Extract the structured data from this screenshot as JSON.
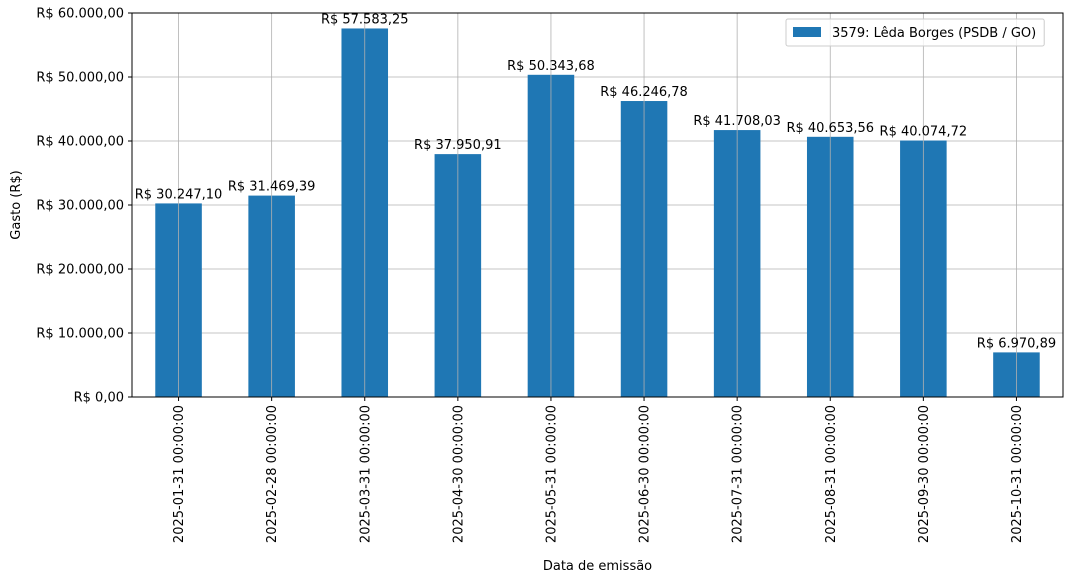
{
  "chart_data": {
    "type": "bar",
    "categories": [
      "2025-01-31 00:00:00",
      "2025-02-28 00:00:00",
      "2025-03-31 00:00:00",
      "2025-04-30 00:00:00",
      "2025-05-31 00:00:00",
      "2025-06-30 00:00:00",
      "2025-07-31 00:00:00",
      "2025-08-31 00:00:00",
      "2025-09-30 00:00:00",
      "2025-10-31 00:00:00"
    ],
    "series": [
      {
        "name": "3579: Lêda Borges (PSDB / GO)",
        "values": [
          30247.1,
          31469.39,
          57583.25,
          37950.91,
          50343.68,
          46246.78,
          41708.03,
          40653.56,
          40074.72,
          6970.89
        ],
        "color": "#1f77b4"
      }
    ],
    "data_labels": [
      "R$ 30.247,10",
      "R$ 31.469,39",
      "R$ 57.583,25",
      "R$ 37.950,91",
      "R$ 50.343,68",
      "R$ 46.246,78",
      "R$ 41.708,03",
      "R$ 40.653,56",
      "R$ 40.074,72",
      "R$ 6.970,89"
    ],
    "title": "",
    "xlabel": "Data de emissão",
    "ylabel": "Gasto (R$)",
    "ylim": [
      0,
      60000
    ],
    "yticks": [
      0,
      10000,
      20000,
      30000,
      40000,
      50000,
      60000
    ],
    "ytick_labels": [
      "R$ 0,00",
      "R$ 10.000,00",
      "R$ 20.000,00",
      "R$ 30.000,00",
      "R$ 40.000,00",
      "R$ 50.000,00",
      "R$ 60.000,00"
    ],
    "grid": true,
    "legend_position": "top-right"
  }
}
